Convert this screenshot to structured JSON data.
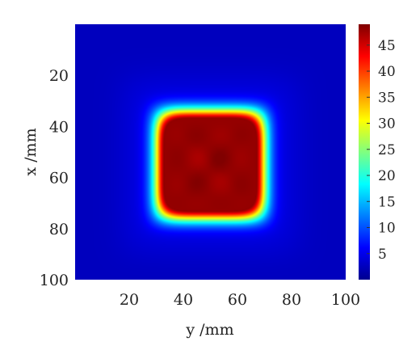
{
  "chart_data": {
    "type": "heatmap",
    "title": "",
    "xlabel": "y /mm",
    "ylabel": "x /mm",
    "x_range": [
      0,
      100
    ],
    "y_range": [
      0,
      100
    ],
    "y_axis_direction": "top-to-bottom",
    "x_ticks": [
      20,
      40,
      60,
      80,
      100
    ],
    "y_ticks": [
      20,
      40,
      60,
      80,
      100
    ],
    "colorbar": {
      "colormap": "jet",
      "range": [
        0,
        49
      ],
      "ticks": [
        5,
        10,
        15,
        20,
        25,
        30,
        35,
        40,
        45
      ]
    },
    "field": {
      "description_of_shape": "rounded square hot region centered at y=50, x=55",
      "center_y_mm": 50,
      "center_x_mm": 55,
      "half_width_y_mm": 17,
      "half_width_x_mm": 18,
      "peak_value": 48,
      "background_value": 3
    }
  }
}
